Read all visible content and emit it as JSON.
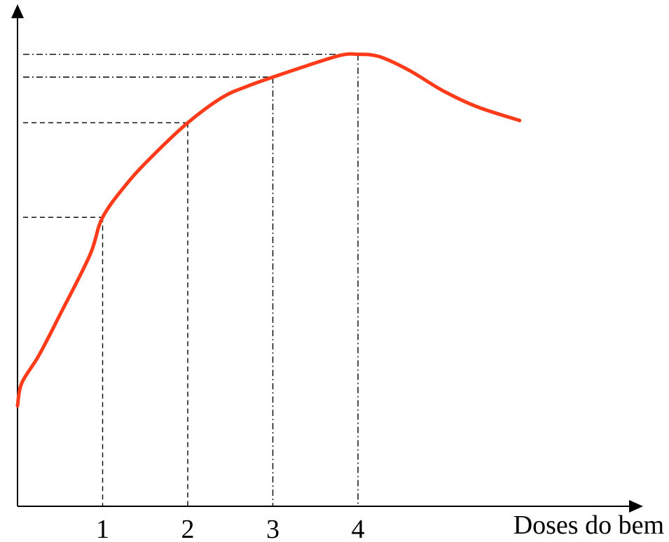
{
  "chart_data": {
    "type": "line",
    "title": "",
    "xlabel": "Doses do bem",
    "ylabel": "",
    "xlim": [
      0,
      7.3
    ],
    "ylim": [
      0,
      10
    ],
    "grid": false,
    "legend": "none",
    "colors": {
      "curve": "#ff3b1a",
      "axes": "#000000",
      "guides": "#000000"
    },
    "tick_labels": [
      "1",
      "2",
      "3",
      "4"
    ],
    "marked_points": [
      {
        "x": 1,
        "y": 6.33
      },
      {
        "x": 2,
        "y": 8.4
      },
      {
        "x": 3,
        "y": 9.4
      },
      {
        "x": 4,
        "y": 9.9
      }
    ],
    "series": [
      {
        "x": [
          0,
          0.05,
          0.25,
          0.5,
          0.85,
          1.0,
          1.3,
          1.6,
          2.0,
          2.4,
          2.7,
          3.0,
          3.4,
          3.8,
          4.0,
          4.25,
          4.6,
          5.0,
          5.4,
          5.9
        ],
        "y": [
          2.2,
          2.7,
          3.3,
          4.2,
          5.5,
          6.33,
          7.1,
          7.7,
          8.4,
          8.95,
          9.2,
          9.4,
          9.65,
          9.88,
          9.9,
          9.85,
          9.55,
          9.1,
          8.75,
          8.45
        ]
      }
    ]
  }
}
